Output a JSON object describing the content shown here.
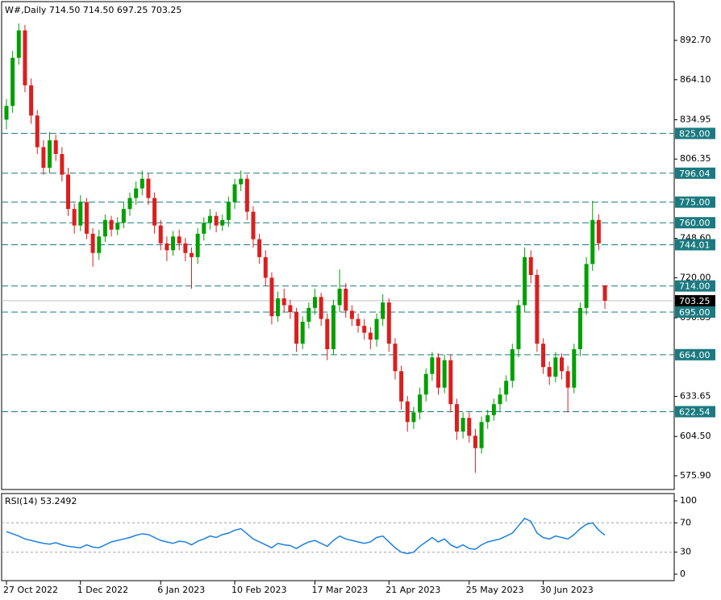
{
  "chart_data": [
    {
      "type": "candlestick",
      "title": "W#,Daily  714.50 714.50 697.25 703.25",
      "categories": [
        "27 Oct 2022",
        null,
        null,
        null,
        null,
        null,
        null,
        null,
        null,
        null,
        null,
        null,
        "1 Dec 2022",
        null,
        null,
        null,
        null,
        null,
        null,
        null,
        null,
        null,
        null,
        null,
        null,
        "6 Jan 2023",
        null,
        null,
        null,
        null,
        null,
        null,
        null,
        null,
        null,
        null,
        null,
        "10 Feb 2023",
        null,
        null,
        null,
        null,
        null,
        null,
        null,
        null,
        null,
        null,
        null,
        null,
        "17 Mar 2023",
        null,
        null,
        null,
        null,
        null,
        null,
        null,
        null,
        null,
        null,
        null,
        "21 Apr 2023",
        null,
        null,
        null,
        null,
        null,
        null,
        null,
        null,
        null,
        null,
        null,
        null,
        "25 May 2023",
        null,
        null,
        null,
        null,
        null,
        null,
        null,
        null,
        null,
        null,
        null,
        "30 Jun 2023",
        null,
        null,
        null,
        null,
        null,
        null,
        null,
        null,
        null,
        null
      ],
      "open": [
        835,
        845,
        880,
        900,
        860,
        838,
        815,
        800,
        820,
        810,
        795,
        770,
        758,
        775,
        752,
        738,
        750,
        762,
        755,
        760,
        770,
        778,
        785,
        792,
        778,
        758,
        745,
        740,
        750,
        745,
        738,
        735,
        752,
        760,
        765,
        758,
        762,
        775,
        788,
        792,
        768,
        748,
        735,
        720,
        692,
        705,
        700,
        695,
        672,
        688,
        698,
        706,
        690,
        668,
        700,
        712,
        696,
        690,
        685,
        680,
        675,
        690,
        702,
        672,
        652,
        630,
        615,
        622,
        635,
        650,
        662,
        640,
        660,
        628,
        608,
        618,
        605,
        596,
        615,
        620,
        628,
        635,
        645,
        668,
        700,
        735,
        722,
        672,
        655,
        648,
        662,
        652,
        640,
        668,
        698,
        730,
        762,
        714.5
      ],
      "high": [
        850,
        885,
        905,
        904,
        865,
        842,
        820,
        826,
        824,
        815,
        800,
        774,
        780,
        778,
        756,
        755,
        766,
        765,
        764,
        775,
        782,
        790,
        798,
        796,
        782,
        762,
        750,
        754,
        755,
        749,
        742,
        756,
        764,
        770,
        768,
        766,
        779,
        792,
        798,
        795,
        772,
        752,
        740,
        724,
        710,
        712,
        704,
        698,
        692,
        702,
        712,
        709,
        694,
        704,
        726,
        716,
        700,
        694,
        690,
        684,
        694,
        708,
        705,
        676,
        656,
        634,
        626,
        640,
        654,
        666,
        665,
        664,
        664,
        632,
        622,
        622,
        610,
        619,
        624,
        632,
        640,
        649,
        672,
        704,
        742,
        740,
        726,
        676,
        659,
        666,
        665,
        656,
        672,
        702,
        735,
        776,
        766,
        714.5
      ],
      "low": [
        828,
        840,
        875,
        855,
        832,
        810,
        795,
        796,
        805,
        790,
        765,
        752,
        754,
        748,
        728,
        733,
        746,
        750,
        751,
        756,
        765,
        773,
        780,
        773,
        752,
        740,
        732,
        736,
        740,
        732,
        712,
        730,
        747,
        755,
        753,
        754,
        757,
        770,
        783,
        762,
        742,
        730,
        714,
        686,
        688,
        695,
        690,
        666,
        668,
        683,
        693,
        685,
        660,
        664,
        695,
        691,
        685,
        680,
        675,
        668,
        670,
        685,
        666,
        646,
        624,
        608,
        610,
        617,
        630,
        645,
        635,
        636,
        622,
        602,
        603,
        600,
        578,
        592,
        610,
        616,
        623,
        630,
        640,
        662,
        695,
        716,
        666,
        650,
        642,
        644,
        646,
        622,
        636,
        663,
        693,
        725,
        740,
        697.25
      ],
      "close": [
        845,
        880,
        900,
        860,
        838,
        815,
        800,
        820,
        810,
        795,
        770,
        758,
        775,
        752,
        738,
        750,
        762,
        755,
        760,
        770,
        778,
        785,
        792,
        778,
        758,
        745,
        740,
        750,
        745,
        738,
        735,
        752,
        760,
        765,
        758,
        762,
        775,
        788,
        792,
        768,
        748,
        735,
        720,
        692,
        705,
        700,
        695,
        672,
        688,
        698,
        706,
        690,
        668,
        700,
        712,
        696,
        690,
        685,
        680,
        675,
        690,
        702,
        672,
        652,
        630,
        615,
        622,
        635,
        650,
        662,
        640,
        660,
        628,
        608,
        618,
        605,
        596,
        615,
        620,
        628,
        635,
        645,
        668,
        700,
        735,
        722,
        672,
        655,
        648,
        662,
        652,
        640,
        668,
        698,
        730,
        762,
        745,
        703.25
      ],
      "up_color": "#00a000",
      "down_color": "#dc1e1e",
      "ylim": [
        565.9,
        920.9
      ],
      "yticks": [
        {
          "value": 892.7,
          "label": "892.70"
        },
        {
          "value": 864.1,
          "label": "864.10"
        },
        {
          "value": 834.95,
          "label": "834.95"
        },
        {
          "value": 806.35,
          "label": "806.35"
        },
        {
          "value": 748.6,
          "label": "748.60"
        },
        {
          "value": 720,
          "label": "720.00"
        },
        {
          "value": 690.85,
          "label": "690.85"
        },
        {
          "value": 633.65,
          "label": "633.65"
        },
        {
          "value": 604.5,
          "label": "604.50"
        },
        {
          "value": 575.9,
          "label": "575.90"
        }
      ],
      "levels": [
        {
          "value": 825,
          "label": "825.00"
        },
        {
          "value": 796.04,
          "label": "796.04"
        },
        {
          "value": 775,
          "label": "775.00"
        },
        {
          "value": 760,
          "label": "760.00"
        },
        {
          "value": 744.01,
          "label": "744.01"
        },
        {
          "value": 714,
          "label": "714.00"
        },
        {
          "value": 695,
          "label": "695.00"
        },
        {
          "value": 664,
          "label": "664.00"
        },
        {
          "value": 622.54,
          "label": "622.54"
        }
      ],
      "level_color": "#1a7a80",
      "current": {
        "value": 703.25,
        "label": "703.25"
      }
    },
    {
      "type": "line",
      "title": "RSI(14) 53.2492",
      "values": [
        58,
        55,
        52,
        48,
        46,
        44,
        42,
        41,
        43,
        40,
        38,
        37,
        36,
        40,
        37,
        36,
        40,
        44,
        46,
        48,
        50,
        53,
        55,
        54,
        50,
        46,
        44,
        42,
        45,
        44,
        40,
        45,
        48,
        52,
        50,
        54,
        56,
        60,
        62,
        55,
        48,
        44,
        40,
        36,
        42,
        40,
        39,
        35,
        40,
        44,
        46,
        42,
        38,
        46,
        52,
        48,
        46,
        44,
        42,
        44,
        50,
        52,
        44,
        36,
        30,
        28,
        30,
        38,
        44,
        50,
        44,
        48,
        40,
        36,
        40,
        35,
        34,
        40,
        44,
        46,
        48,
        52,
        56,
        66,
        76,
        72,
        56,
        50,
        48,
        52,
        50,
        48,
        54,
        62,
        68,
        70,
        60,
        53.2492
      ],
      "color": "#1e7fe0",
      "ylim": [
        -8.8,
        109.9
      ],
      "yticks": [
        100,
        70,
        30,
        0
      ],
      "levels": [
        70,
        30
      ]
    }
  ]
}
